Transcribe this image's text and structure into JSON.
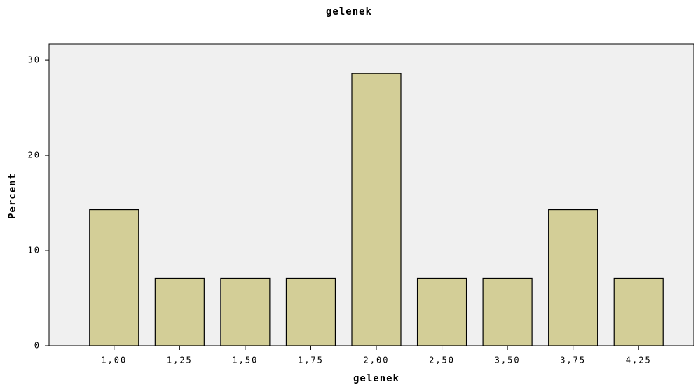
{
  "chart_data": {
    "type": "bar",
    "title": "gelenek",
    "x_label": "gelenek",
    "y_label": "Percent",
    "categories": [
      "1,00",
      "1,25",
      "1,50",
      "1,75",
      "2,00",
      "2,50",
      "3,50",
      "3,75",
      "4,25"
    ],
    "values": [
      14.3,
      7.1,
      7.1,
      7.1,
      28.6,
      7.1,
      7.1,
      14.3,
      7.1
    ],
    "color": "#d3ce97",
    "ylim": [
      0,
      31.7
    ],
    "yticks": [
      0,
      10,
      20,
      30
    ],
    "grid": false
  }
}
